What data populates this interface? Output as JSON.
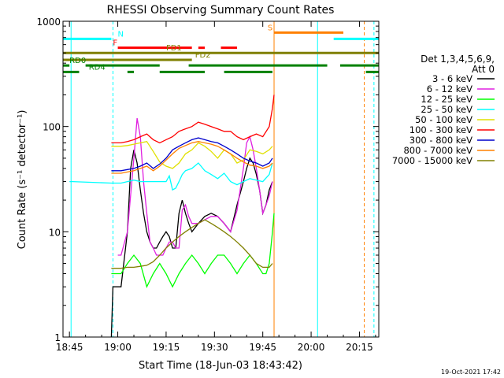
{
  "chart_data": {
    "type": "line",
    "title": "RHESSI Observing Summary Count Rates",
    "xlabel": "Start Time (18-Jun-03 18:43:42)",
    "ylabel": "Count Rate (s⁻¹ detector⁻¹)",
    "yscale": "log",
    "ylim": [
      1,
      1000
    ],
    "xlim_minutes": [
      -2,
      96
    ],
    "x_ticks": [
      {
        "label": "18:45",
        "minute": 0
      },
      {
        "label": "19:00",
        "minute": 15
      },
      {
        "label": "19:15",
        "minute": 30
      },
      {
        "label": "19:30",
        "minute": 45
      },
      {
        "label": "19:45",
        "minute": 60
      },
      {
        "label": "20:00",
        "minute": 75
      },
      {
        "label": "20:15",
        "minute": 90
      }
    ],
    "y_ticks": [
      {
        "label": "1",
        "value": 1
      },
      {
        "label": "10",
        "value": 10
      },
      {
        "label": "100",
        "value": 100
      },
      {
        "label": "1000",
        "value": 1000
      }
    ],
    "legend_header": [
      "Det 1,3,4,5,6,9,",
      "Att 0"
    ],
    "legend_position": "right",
    "series": [
      {
        "name": "3 - 6 keV",
        "color": "#000000",
        "x": [
          13,
          13.5,
          16,
          18,
          19,
          20,
          21,
          22,
          23,
          24,
          25,
          26,
          27,
          28,
          29,
          30,
          31,
          32,
          33,
          34,
          35,
          36,
          37,
          38,
          40,
          42,
          44,
          46,
          48,
          50,
          52,
          54,
          55,
          56,
          57,
          58,
          59,
          60,
          61,
          62,
          63
        ],
        "y": [
          1,
          3,
          3,
          10,
          40,
          60,
          45,
          25,
          15,
          10,
          8,
          7,
          7,
          8,
          9,
          10,
          9,
          7,
          7,
          15,
          20,
          15,
          12,
          10,
          12,
          14,
          15,
          14,
          12,
          10,
          18,
          30,
          40,
          50,
          45,
          35,
          25,
          15,
          18,
          25,
          30
        ]
      },
      {
        "name": "6 - 12 keV",
        "color": "#e020e0",
        "x": [
          15,
          16,
          18,
          20,
          21,
          22,
          23,
          24,
          25,
          26,
          27,
          28,
          29,
          30,
          31,
          32,
          33,
          34,
          35,
          36,
          37,
          38,
          40,
          42,
          44,
          46,
          48,
          50,
          52,
          54,
          55,
          56,
          57,
          58,
          59,
          60,
          61,
          62,
          63
        ],
        "y": [
          6,
          6,
          10,
          50,
          120,
          80,
          30,
          15,
          8,
          7,
          6,
          6,
          6,
          7,
          8,
          8,
          7,
          7,
          16,
          18,
          14,
          12,
          12,
          13,
          14,
          14,
          12,
          10,
          16,
          40,
          70,
          80,
          60,
          40,
          25,
          15,
          18,
          22,
          30
        ]
      },
      {
        "name": "12 - 25 keV",
        "color": "#00ff00",
        "x": [
          13,
          16,
          18,
          20,
          22,
          24,
          26,
          28,
          30,
          32,
          34,
          36,
          38,
          40,
          42,
          44,
          46,
          48,
          50,
          52,
          54,
          56,
          58,
          60,
          61,
          62,
          63,
          63.5
        ],
        "y": [
          4,
          4,
          5,
          6,
          5,
          3,
          4,
          5,
          4,
          3,
          4,
          5,
          6,
          5,
          4,
          5,
          6,
          6,
          5,
          4,
          5,
          6,
          5,
          4,
          4,
          5,
          10,
          15
        ]
      },
      {
        "name": "25 - 50 keV",
        "color": "#00ffff",
        "x": [
          0,
          1,
          13,
          16,
          18,
          20,
          22,
          24,
          26,
          28,
          30,
          31,
          32,
          33,
          34,
          35,
          36,
          38,
          40,
          42,
          44,
          46,
          48,
          50,
          52,
          54,
          56,
          58,
          60,
          62,
          63
        ],
        "y": [
          30,
          30,
          29,
          29,
          30,
          31,
          30,
          30,
          30,
          30,
          30,
          34,
          25,
          26,
          30,
          35,
          38,
          40,
          45,
          38,
          35,
          32,
          36,
          30,
          28,
          30,
          32,
          31,
          30,
          35,
          45
        ]
      },
      {
        "name": "50 - 100 keV",
        "color": "#e0e000",
        "x": [
          13,
          16,
          18,
          20,
          22,
          24,
          26,
          28,
          30,
          32,
          34,
          36,
          38,
          40,
          42,
          44,
          46,
          48,
          50,
          52,
          54,
          56,
          58,
          60,
          62,
          63
        ],
        "y": [
          65,
          65,
          66,
          68,
          70,
          72,
          58,
          46,
          42,
          40,
          45,
          55,
          60,
          70,
          65,
          58,
          50,
          60,
          55,
          45,
          48,
          60,
          58,
          55,
          60,
          65
        ]
      },
      {
        "name": "100 - 300 keV",
        "color": "#ff0000",
        "x": [
          13,
          16,
          18,
          20,
          22,
          24,
          26,
          28,
          30,
          32,
          34,
          36,
          38,
          40,
          42,
          44,
          46,
          48,
          50,
          52,
          54,
          56,
          58,
          60,
          62,
          63,
          63.5
        ],
        "y": [
          70,
          70,
          72,
          75,
          80,
          85,
          75,
          70,
          75,
          80,
          90,
          95,
          100,
          110,
          105,
          100,
          95,
          90,
          90,
          80,
          75,
          80,
          85,
          80,
          100,
          150,
          200
        ]
      },
      {
        "name": "300 - 800 keV",
        "color": "#0000cc",
        "x": [
          13,
          16,
          18,
          20,
          22,
          24,
          26,
          28,
          30,
          32,
          34,
          36,
          38,
          40,
          42,
          44,
          46,
          48,
          50,
          52,
          54,
          56,
          58,
          60,
          62,
          63
        ],
        "y": [
          38,
          38,
          39,
          40,
          42,
          45,
          40,
          44,
          50,
          60,
          65,
          70,
          75,
          78,
          75,
          72,
          70,
          65,
          60,
          55,
          50,
          47,
          45,
          42,
          45,
          50
        ]
      },
      {
        "name": "800 - 7000 keV",
        "color": "#ff8000",
        "x": [
          13,
          16,
          18,
          20,
          22,
          24,
          26,
          28,
          30,
          32,
          34,
          36,
          38,
          40,
          42,
          44,
          46,
          48,
          50,
          52,
          54,
          56,
          58,
          60,
          62,
          63
        ],
        "y": [
          36,
          36,
          37,
          38,
          40,
          42,
          38,
          42,
          48,
          55,
          62,
          66,
          70,
          72,
          70,
          68,
          65,
          60,
          55,
          50,
          46,
          43,
          42,
          40,
          42,
          45
        ]
      },
      {
        "name": "7000 - 15000 keV",
        "color": "#808000",
        "x": [
          13,
          16,
          18,
          20,
          22,
          24,
          26,
          28,
          30,
          32,
          34,
          36,
          38,
          40,
          42,
          44,
          46,
          48,
          50,
          52,
          54,
          56,
          58,
          60,
          62,
          63
        ],
        "y": [
          4.5,
          4.5,
          4.6,
          4.6,
          4.7,
          4.8,
          5.2,
          6,
          7,
          8,
          9,
          10,
          11,
          12,
          13,
          12,
          11,
          10,
          9,
          8,
          7,
          6,
          5,
          4.6,
          4.6,
          5
        ]
      }
    ],
    "state_bars": [
      {
        "label": "N",
        "color": "#00ffff",
        "y": 680,
        "segments": [
          [
            -2,
            13
          ]
        ],
        "label_at": 15
      },
      {
        "label": "",
        "color": "#00ffff",
        "y": 680,
        "segments": [
          [
            82,
            96
          ]
        ]
      },
      {
        "label": "F",
        "color": "#ff0000",
        "y": 560,
        "segments": [
          [
            15,
            38
          ],
          [
            40,
            42
          ],
          [
            47,
            52
          ]
        ],
        "label_at": 13.5
      },
      {
        "label": "S",
        "color": "#ff8000",
        "y": 780,
        "segments": [
          [
            63.5,
            85
          ]
        ],
        "label_at": 61.5
      },
      {
        "label": "FD1",
        "color": "#808000",
        "y": 500,
        "segments": [
          [
            -2,
            96
          ]
        ],
        "label_at": 30
      },
      {
        "label": "FD2",
        "color": "#808000",
        "y": 430,
        "segments": [
          [
            -2,
            38
          ]
        ],
        "label_at": 39
      },
      {
        "label": "RD0",
        "color": "#008000",
        "y": 380,
        "segments": [
          [
            -2,
            0
          ],
          [
            5,
            28
          ],
          [
            37,
            80
          ],
          [
            84,
            96
          ]
        ],
        "label_at": 0
      },
      {
        "label": "RD4",
        "color": "#008000",
        "y": 330,
        "segments": [
          [
            -2,
            3
          ],
          [
            18,
            20
          ],
          [
            28,
            42
          ],
          [
            48,
            63
          ],
          [
            92,
            96
          ]
        ],
        "label_at": 6
      }
    ],
    "vertical_lines": [
      {
        "minute": 0.5,
        "color": "#00ffff",
        "dashed": false
      },
      {
        "minute": 13.5,
        "color": "#00ffff",
        "dashed": true
      },
      {
        "minute": 63.5,
        "color": "#ff8000",
        "dashed": false
      },
      {
        "minute": 77,
        "color": "#00ffff",
        "dashed": false
      },
      {
        "minute": 91.5,
        "color": "#ff8000",
        "dashed": true
      },
      {
        "minute": 94.5,
        "color": "#00ffff",
        "dashed": true
      }
    ]
  },
  "footer": {
    "timestamp": "19-Oct-2021 17:42"
  }
}
